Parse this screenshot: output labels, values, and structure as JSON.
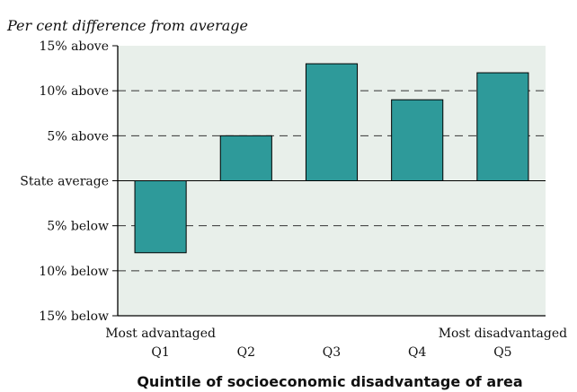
{
  "chart_data": {
    "type": "bar",
    "subtitle": "Per cent difference from average",
    "xlabel": "Quintile of socioeconomic disadvantage of area",
    "ylabel": "",
    "categories": [
      "Q1",
      "Q2",
      "Q3",
      "Q4",
      "Q5"
    ],
    "category_notes": [
      "Most advantaged",
      "",
      "",
      "",
      "Most disadvantaged"
    ],
    "values": [
      -8,
      5,
      13,
      9,
      12
    ],
    "ylim": [
      -15,
      15
    ],
    "yticks": [
      15,
      10,
      5,
      0,
      -5,
      -10,
      -15
    ],
    "ytick_labels": [
      "15% above",
      "10% above",
      "5% above",
      "State average",
      "5% below",
      "10% below",
      "15% below"
    ],
    "grid": "dashed horizontal",
    "colors": {
      "bar": "#2e9a9a",
      "plot_background": "#e8efea",
      "grid": "#333333"
    }
  }
}
